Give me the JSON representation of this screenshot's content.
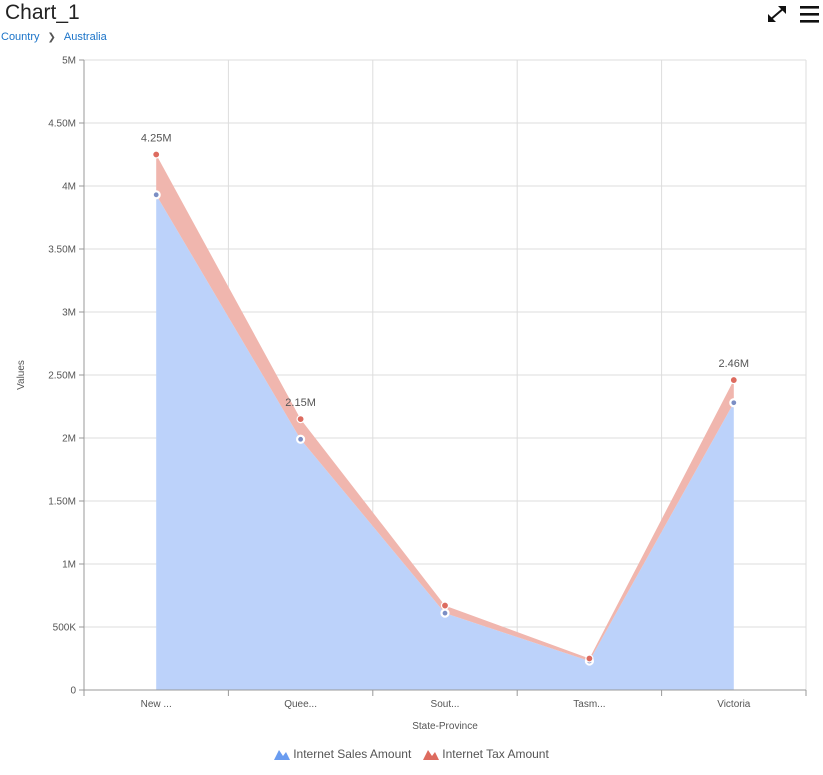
{
  "header": {
    "title": "Chart_1",
    "breadcrumb": [
      "Country",
      "Australia"
    ],
    "expand_icon": "expand-arrows-icon",
    "menu_icon": "hamburger-menu-icon"
  },
  "colors": {
    "sales": "#6a9cf0",
    "sales_fill": "#bcd2fa",
    "tax": "#dd6b5f",
    "tax_fill": "#f0b6ae",
    "breadcrumb": "#1a73c8"
  },
  "chart_data": {
    "type": "area",
    "stacked": true,
    "categories": [
      "New ...",
      "Quee...",
      "Sout...",
      "Tasm...",
      "Victoria"
    ],
    "series": [
      {
        "name": "Internet Sales Amount",
        "values": [
          3930000,
          1990000,
          610000,
          230000,
          2280000
        ]
      },
      {
        "name": "Internet Tax Amount",
        "values": [
          320000,
          160000,
          60000,
          20000,
          180000
        ]
      }
    ],
    "stack_totals": [
      4250000,
      2150000,
      670000,
      250000,
      2460000
    ],
    "data_labels": [
      "4.25M",
      "2.15M",
      "",
      "",
      "2.46M"
    ],
    "xlabel": "State-Province",
    "ylabel": "Values",
    "ylim": [
      0,
      5000000
    ],
    "yticks": [
      0,
      500000,
      1000000,
      1500000,
      2000000,
      2500000,
      3000000,
      3500000,
      4000000,
      4500000,
      5000000
    ],
    "ytick_labels": [
      "0",
      "500K",
      "1M",
      "1.50M",
      "2M",
      "2.50M",
      "3M",
      "3.50M",
      "4M",
      "4.50M",
      "5M"
    ],
    "grid": true,
    "legend_position": "bottom"
  }
}
